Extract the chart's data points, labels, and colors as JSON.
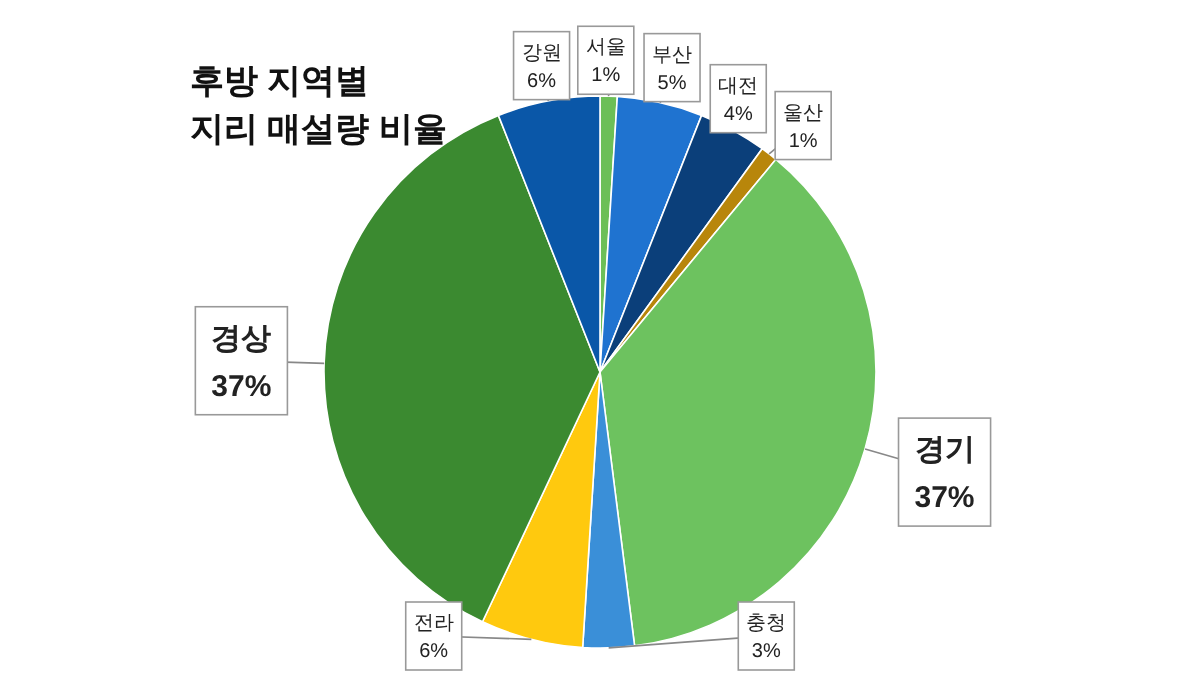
{
  "chart_data": {
    "type": "pie",
    "title": "후방 지역별\n지리 매설량 비율",
    "categories": [
      "서울",
      "부산",
      "대전",
      "울산",
      "경기",
      "충청",
      "전라",
      "경상",
      "강원"
    ],
    "values": [
      1,
      5,
      4,
      1,
      37,
      3,
      6,
      37,
      6
    ],
    "colors": [
      "#6cbf57",
      "#1f73d0",
      "#0b3f7a",
      "#b8860b",
      "#6dc25f",
      "#3a8fd8",
      "#ffc90e",
      "#3b8a30",
      "#0a57a8"
    ],
    "value_labels": [
      "1%",
      "5%",
      "4%",
      "1%",
      "37%",
      "3%",
      "6%",
      "37%",
      "6%"
    ]
  }
}
